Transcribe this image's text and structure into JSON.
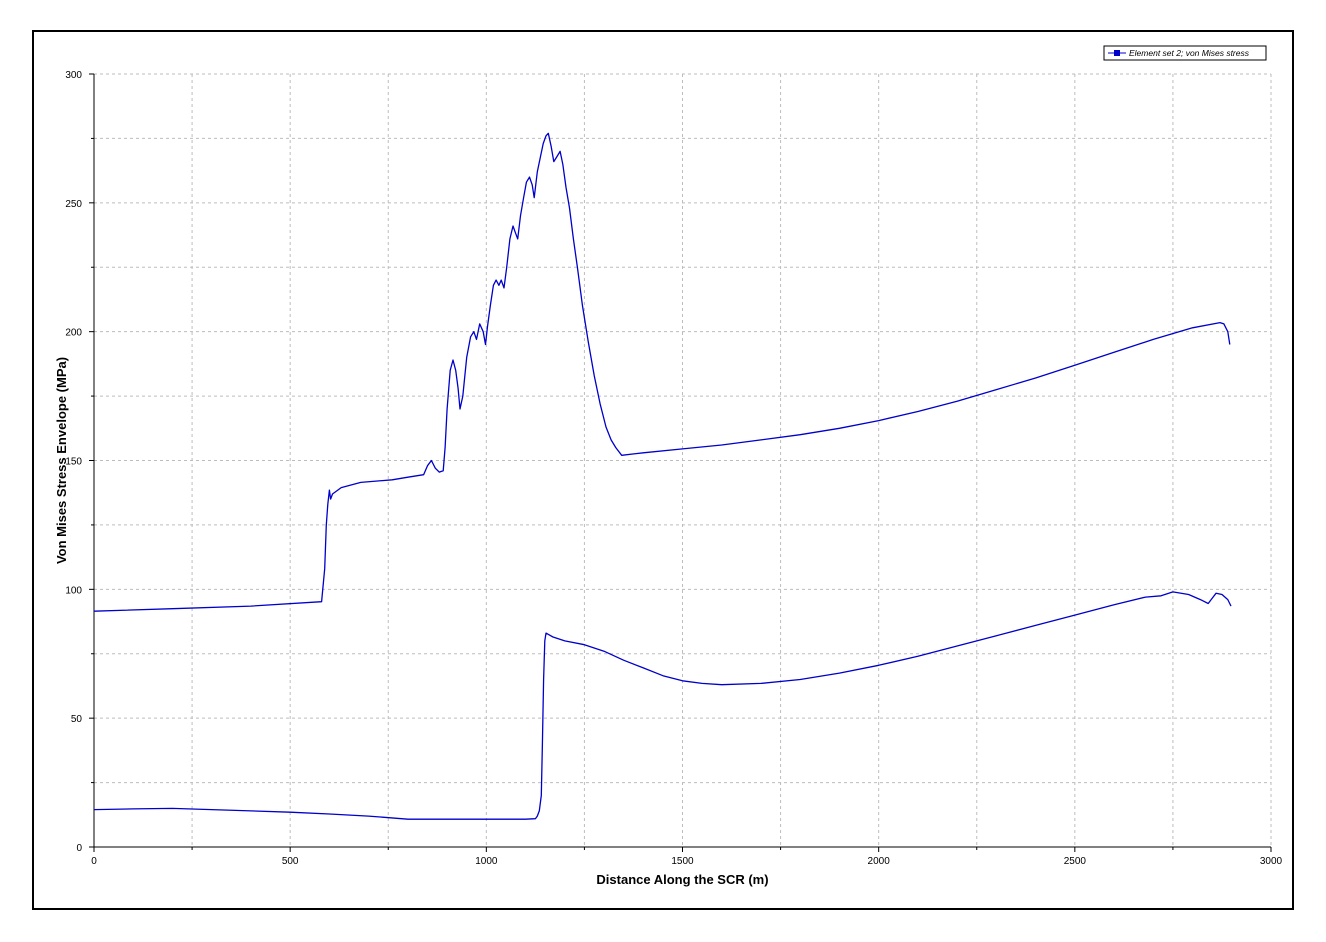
{
  "chart_data": {
    "type": "line",
    "title": "",
    "xlabel": "Distance Along the SCR (m)",
    "ylabel": "Von Mises Stress Envelope (MPa)",
    "xlim": [
      0,
      3000
    ],
    "ylim": [
      0,
      300
    ],
    "xticks": [
      0,
      500,
      1000,
      1500,
      2000,
      2500,
      3000
    ],
    "yticks": [
      0,
      50,
      100,
      150,
      200,
      250,
      300
    ],
    "grid": true,
    "legend_position": "top-right",
    "legend": [
      "Element set  2; von Mises stress"
    ],
    "series_color": "#0000cc",
    "series": [
      {
        "name": "Element set  2; von Mises stress",
        "values": [
          [
            0,
            91.5
          ],
          [
            200,
            92.5
          ],
          [
            400,
            93.5
          ],
          [
            580,
            95.2
          ],
          [
            588,
            108
          ],
          [
            592,
            125
          ],
          [
            596,
            133
          ],
          [
            600,
            138.5
          ],
          [
            603,
            135
          ],
          [
            608,
            137
          ],
          [
            630,
            139.5
          ],
          [
            680,
            141.5
          ],
          [
            760,
            142.5
          ],
          [
            800,
            143.5
          ],
          [
            840,
            144.5
          ],
          [
            850,
            148
          ],
          [
            860,
            150
          ],
          [
            870,
            147
          ],
          [
            880,
            145.5
          ],
          [
            890,
            146
          ],
          [
            895,
            155
          ],
          [
            900,
            170
          ],
          [
            908,
            185
          ],
          [
            915,
            189
          ],
          [
            922,
            185
          ],
          [
            928,
            178
          ],
          [
            933,
            170
          ],
          [
            940,
            175
          ],
          [
            950,
            190
          ],
          [
            960,
            198
          ],
          [
            968,
            200
          ],
          [
            975,
            197
          ],
          [
            983,
            203
          ],
          [
            992,
            200
          ],
          [
            998,
            195
          ],
          [
            1003,
            202
          ],
          [
            1010,
            210
          ],
          [
            1018,
            218
          ],
          [
            1025,
            220
          ],
          [
            1032,
            218
          ],
          [
            1038,
            220
          ],
          [
            1045,
            217
          ],
          [
            1052,
            225
          ],
          [
            1060,
            236
          ],
          [
            1068,
            241
          ],
          [
            1075,
            238
          ],
          [
            1080,
            236
          ],
          [
            1087,
            245
          ],
          [
            1095,
            252
          ],
          [
            1102,
            258
          ],
          [
            1110,
            260
          ],
          [
            1117,
            257
          ],
          [
            1122,
            252
          ],
          [
            1130,
            262
          ],
          [
            1138,
            268
          ],
          [
            1145,
            273
          ],
          [
            1152,
            276
          ],
          [
            1158,
            277
          ],
          [
            1165,
            272
          ],
          [
            1172,
            266
          ],
          [
            1180,
            268
          ],
          [
            1188,
            270
          ],
          [
            1195,
            265
          ],
          [
            1203,
            256
          ],
          [
            1212,
            248
          ],
          [
            1222,
            236
          ],
          [
            1232,
            225
          ],
          [
            1245,
            210
          ],
          [
            1260,
            196
          ],
          [
            1275,
            183
          ],
          [
            1290,
            172
          ],
          [
            1305,
            163
          ],
          [
            1318,
            158
          ],
          [
            1330,
            155
          ],
          [
            1345,
            152
          ],
          [
            1400,
            153
          ],
          [
            1500,
            154.5
          ],
          [
            1600,
            156
          ],
          [
            1700,
            158
          ],
          [
            1800,
            160
          ],
          [
            1900,
            162.5
          ],
          [
            2000,
            165.5
          ],
          [
            2100,
            169
          ],
          [
            2200,
            173
          ],
          [
            2300,
            177.5
          ],
          [
            2400,
            182
          ],
          [
            2500,
            187
          ],
          [
            2600,
            192
          ],
          [
            2700,
            197
          ],
          [
            2800,
            201.5
          ],
          [
            2870,
            203.5
          ],
          [
            2880,
            203
          ],
          [
            2890,
            200
          ],
          [
            2895,
            195
          ]
        ]
      },
      {
        "name": "",
        "values": [
          [
            0,
            14.5
          ],
          [
            100,
            14.8
          ],
          [
            200,
            15
          ],
          [
            300,
            14.5
          ],
          [
            400,
            14
          ],
          [
            500,
            13.5
          ],
          [
            600,
            12.8
          ],
          [
            700,
            12
          ],
          [
            800,
            10.8
          ],
          [
            900,
            10.8
          ],
          [
            1000,
            10.8
          ],
          [
            1100,
            10.8
          ],
          [
            1125,
            11
          ],
          [
            1130,
            12
          ],
          [
            1135,
            14
          ],
          [
            1140,
            20
          ],
          [
            1143,
            40
          ],
          [
            1146,
            65
          ],
          [
            1149,
            80
          ],
          [
            1152,
            83
          ],
          [
            1170,
            81.5
          ],
          [
            1200,
            80
          ],
          [
            1250,
            78.5
          ],
          [
            1300,
            76
          ],
          [
            1350,
            72.5
          ],
          [
            1400,
            69.5
          ],
          [
            1450,
            66.5
          ],
          [
            1500,
            64.5
          ],
          [
            1550,
            63.5
          ],
          [
            1600,
            63
          ],
          [
            1700,
            63.5
          ],
          [
            1800,
            65
          ],
          [
            1900,
            67.5
          ],
          [
            2000,
            70.5
          ],
          [
            2100,
            74
          ],
          [
            2200,
            78
          ],
          [
            2300,
            82
          ],
          [
            2400,
            86
          ],
          [
            2500,
            90
          ],
          [
            2600,
            94
          ],
          [
            2680,
            97
          ],
          [
            2720,
            97.5
          ],
          [
            2750,
            99
          ],
          [
            2790,
            98
          ],
          [
            2820,
            96
          ],
          [
            2840,
            94.5
          ],
          [
            2850,
            96.5
          ],
          [
            2860,
            98.5
          ],
          [
            2875,
            98
          ],
          [
            2890,
            96
          ],
          [
            2898,
            93.5
          ]
        ]
      }
    ]
  }
}
